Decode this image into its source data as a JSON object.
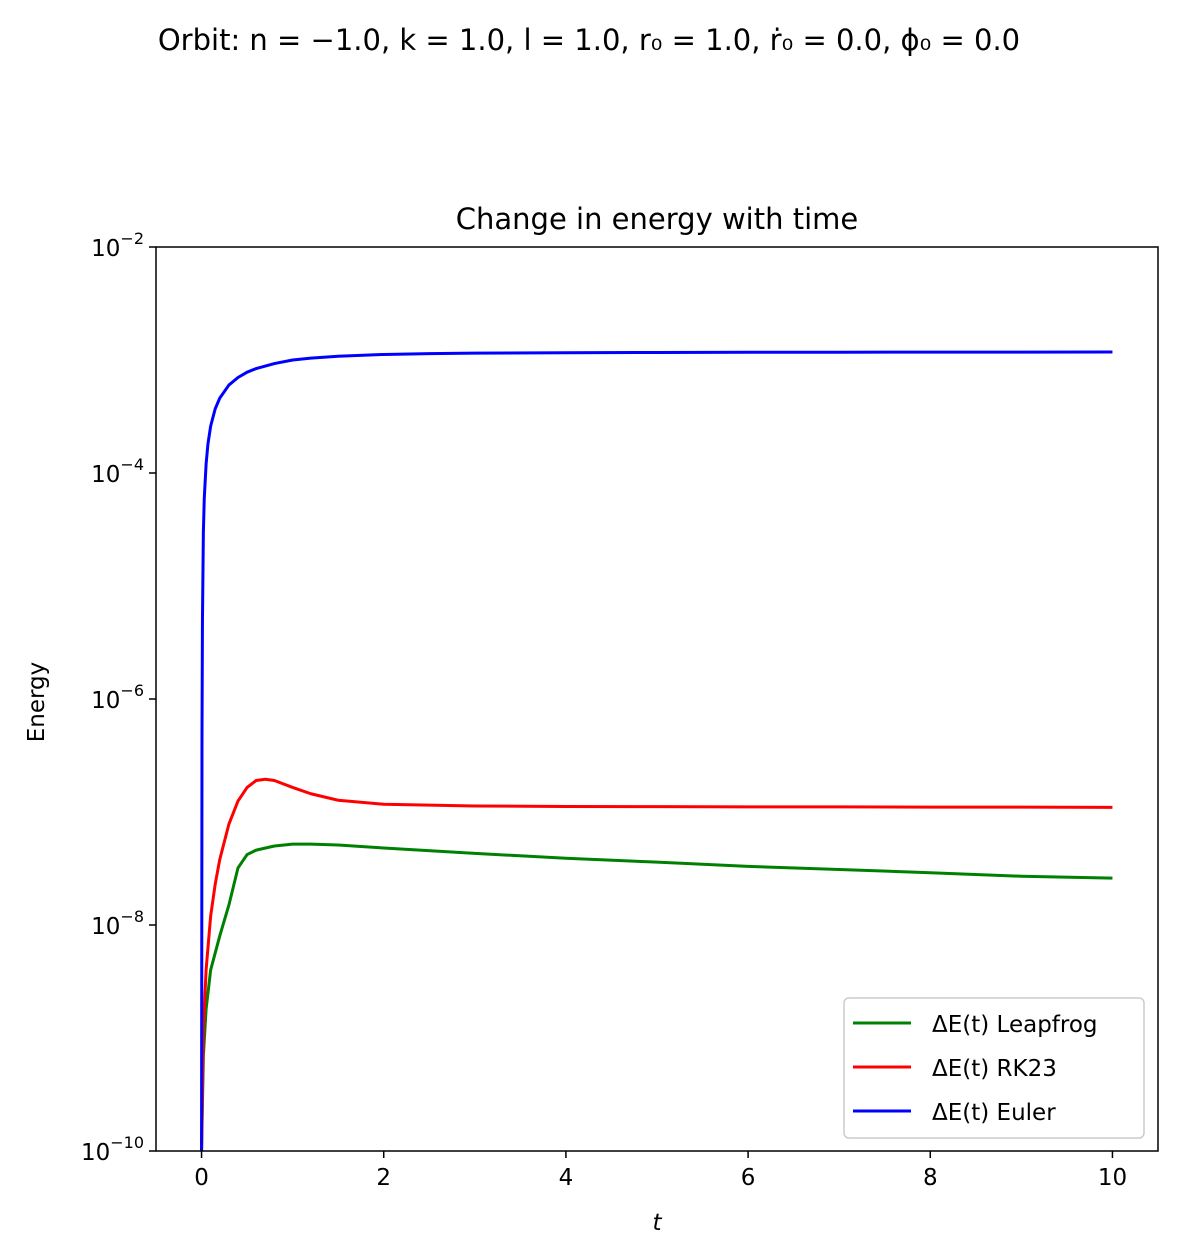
{
  "figure": {
    "suptitle": "Orbit:   n = −1.0,  k = 1.0,  l = 1.0,  r₀ = 1.0,  ṙ₀ = 0.0,  ϕ₀ = 0.0"
  },
  "chart_data": {
    "type": "line",
    "title": "Change in energy with time",
    "xlabel": "t",
    "ylabel": "Energy",
    "xlim": [
      -0.5,
      10.5
    ],
    "ylim": [
      1e-10,
      0.01
    ],
    "yscale": "log",
    "xticks": [
      0,
      2,
      4,
      6,
      8,
      10
    ],
    "xtick_labels": [
      "0",
      "2",
      "4",
      "6",
      "8",
      "10"
    ],
    "yticks": [
      1e-10,
      1e-08,
      1e-06,
      0.0001,
      0.01
    ],
    "ytick_labels": [
      {
        "base": "10",
        "exp": "−10"
      },
      {
        "base": "10",
        "exp": "−8"
      },
      {
        "base": "10",
        "exp": "−6"
      },
      {
        "base": "10",
        "exp": "−4"
      },
      {
        "base": "10",
        "exp": "−2"
      }
    ],
    "grid": false,
    "legend_position": "lower-right",
    "series": [
      {
        "name": "ΔE(t) Leapfrog",
        "color": "#008000",
        "x": [
          0.0,
          0.02,
          0.05,
          0.1,
          0.2,
          0.3,
          0.4,
          0.5,
          0.6,
          0.8,
          1.0,
          1.2,
          1.5,
          2.0,
          3.0,
          4.0,
          5.0,
          6.0,
          7.0,
          8.0,
          9.0,
          10.0
        ],
        "y": [
          1e-10,
          7e-10,
          1.8e-09,
          4e-09,
          8e-09,
          1.5e-08,
          3.2e-08,
          4.2e-08,
          4.6e-08,
          5e-08,
          5.2e-08,
          5.2e-08,
          5.1e-08,
          4.8e-08,
          4.3e-08,
          3.9e-08,
          3.6e-08,
          3.3e-08,
          3.1e-08,
          2.9e-08,
          2.7e-08,
          2.6e-08
        ]
      },
      {
        "name": "ΔE(t) RK23",
        "color": "#ff0000",
        "x": [
          0.0,
          0.02,
          0.05,
          0.1,
          0.15,
          0.2,
          0.3,
          0.4,
          0.5,
          0.6,
          0.7,
          0.8,
          1.0,
          1.2,
          1.5,
          2.0,
          3.0,
          4.0,
          5.0,
          6.0,
          7.0,
          8.0,
          9.0,
          10.0
        ],
        "y": [
          1e-10,
          1.2e-09,
          4e-09,
          1.2e-08,
          2.3e-08,
          3.8e-08,
          7.8e-08,
          1.25e-07,
          1.65e-07,
          1.9e-07,
          1.95e-07,
          1.9e-07,
          1.65e-07,
          1.45e-07,
          1.27e-07,
          1.17e-07,
          1.13e-07,
          1.12e-07,
          1.115e-07,
          1.11e-07,
          1.11e-07,
          1.105e-07,
          1.105e-07,
          1.1e-07
        ]
      },
      {
        "name": "ΔE(t) Euler",
        "color": "#0000ff",
        "x": [
          0.0,
          0.005,
          0.01,
          0.02,
          0.03,
          0.05,
          0.07,
          0.1,
          0.15,
          0.2,
          0.3,
          0.4,
          0.5,
          0.6,
          0.8,
          1.0,
          1.2,
          1.5,
          2.0,
          2.5,
          3.0,
          4.0,
          5.0,
          6.0,
          7.0,
          8.0,
          9.0,
          10.0
        ],
        "y": [
          1e-10,
          5e-07,
          5e-06,
          3e-05,
          6e-05,
          0.00012,
          0.00018,
          0.00026,
          0.00037,
          0.00046,
          0.0006,
          0.0007,
          0.00078,
          0.00084,
          0.00093,
          0.001,
          0.00104,
          0.00108,
          0.00112,
          0.00114,
          0.00115,
          0.00116,
          0.001165,
          0.00117,
          0.001172,
          0.001174,
          0.001175,
          0.001176
        ]
      }
    ]
  }
}
